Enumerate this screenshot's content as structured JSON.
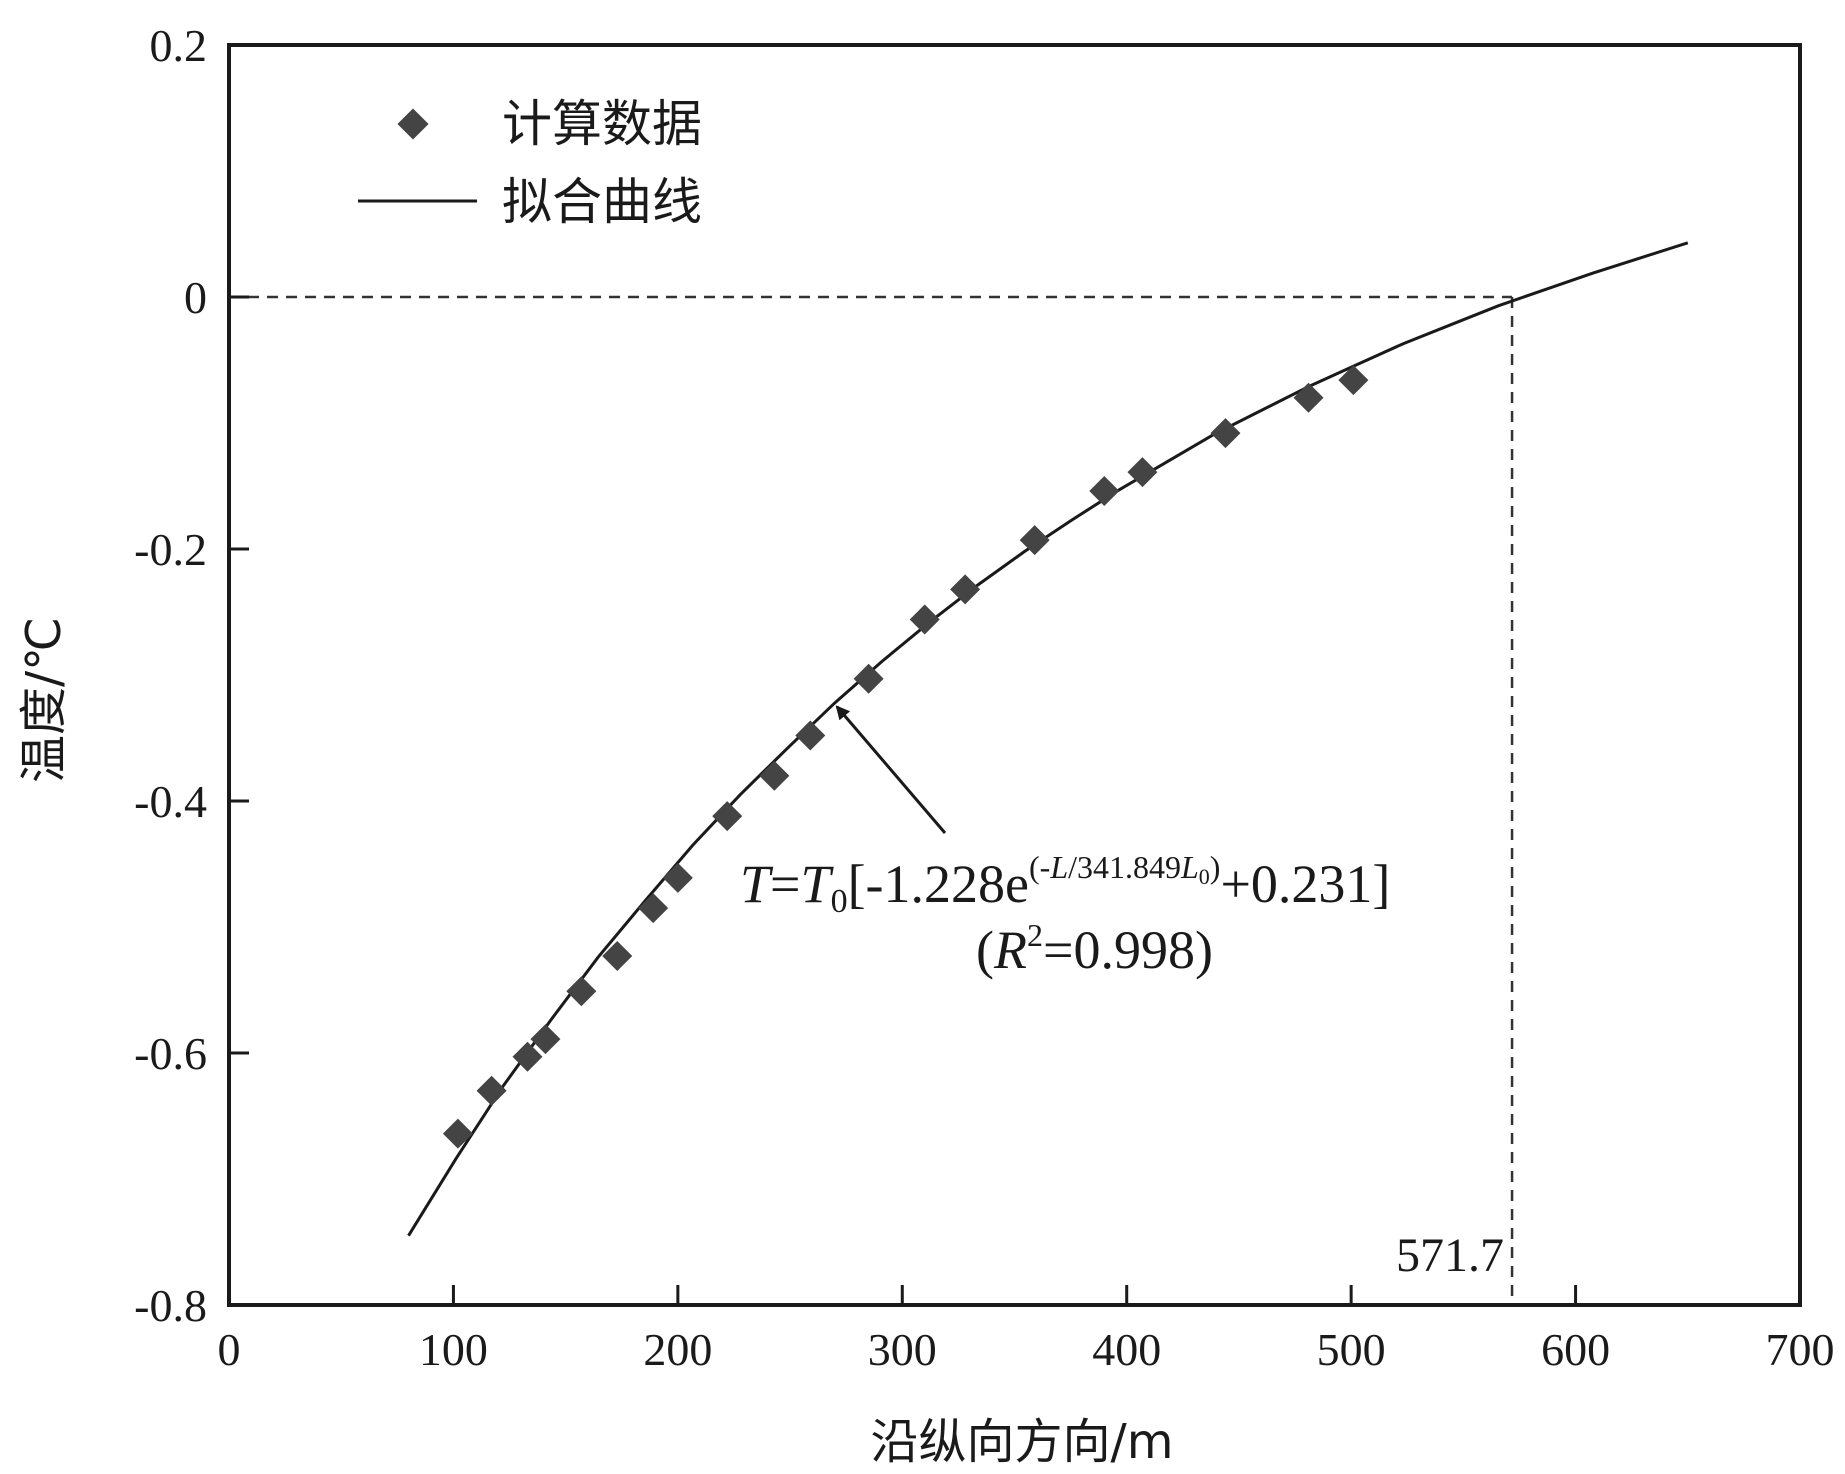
{
  "chart_data": {
    "type": "scatter",
    "title": "",
    "xlabel": "沿纵向方向/m",
    "ylabel": "温度/℃",
    "xlim": [
      0,
      700
    ],
    "ylim": [
      -0.8,
      0.2
    ],
    "x_ticks": [
      "0",
      "100",
      "200",
      "300",
      "400",
      "500",
      "600",
      "700"
    ],
    "y_ticks": [
      "0.2",
      "0",
      "-0.2",
      "-0.4",
      "-0.6",
      "-0.8"
    ],
    "grid": false,
    "legend_position": "top-left",
    "series": [
      {
        "name": "计算数据",
        "type": "scatter",
        "marker": "diamond",
        "color": "#444444",
        "x": [
          102,
          117,
          133,
          141,
          157,
          173,
          189,
          200,
          222,
          243,
          259,
          285,
          310,
          328,
          359,
          390,
          407,
          444,
          481,
          501
        ],
        "y": [
          -0.664,
          -0.63,
          -0.603,
          -0.589,
          -0.551,
          -0.523,
          -0.485,
          -0.461,
          -0.412,
          -0.38,
          -0.348,
          -0.303,
          -0.256,
          -0.232,
          -0.193,
          -0.154,
          -0.139,
          -0.108,
          -0.08,
          -0.066
        ]
      },
      {
        "name": "拟合曲线",
        "type": "line",
        "color": "#1a1a1a",
        "x_range": [
          80,
          650
        ],
        "y_samples": [
          -0.745,
          -0.684,
          -0.626,
          -0.574,
          -0.524,
          -0.479,
          -0.435,
          -0.395,
          -0.358,
          -0.322,
          -0.289,
          -0.258,
          -0.229,
          -0.202,
          -0.177,
          -0.153,
          -0.131,
          -0.109,
          -0.09,
          -0.071,
          -0.054,
          -0.037,
          -0.022,
          -0.007,
          0.006,
          0.019,
          0.031,
          0.043
        ]
      }
    ],
    "annotations": {
      "equation": {
        "T": "T",
        "eq": "=",
        "T0_base": "T",
        "T0_sub": "0",
        "coef": "[-1.228e",
        "exp_open": "(-",
        "exp_L": "L",
        "exp_mid": "/341.849",
        "exp_L0_base": "L",
        "exp_L0_sub": "0",
        "exp_close": ")",
        "tail": "+0.231]",
        "arrow_to_x": 270
      },
      "r_squared": {
        "open": "(",
        "R": "R",
        "sup": "2",
        "value": "=0.998)"
      },
      "reference_lines": {
        "y_zero": 0,
        "x_intercept": 571.7,
        "label": "571.7"
      }
    }
  }
}
